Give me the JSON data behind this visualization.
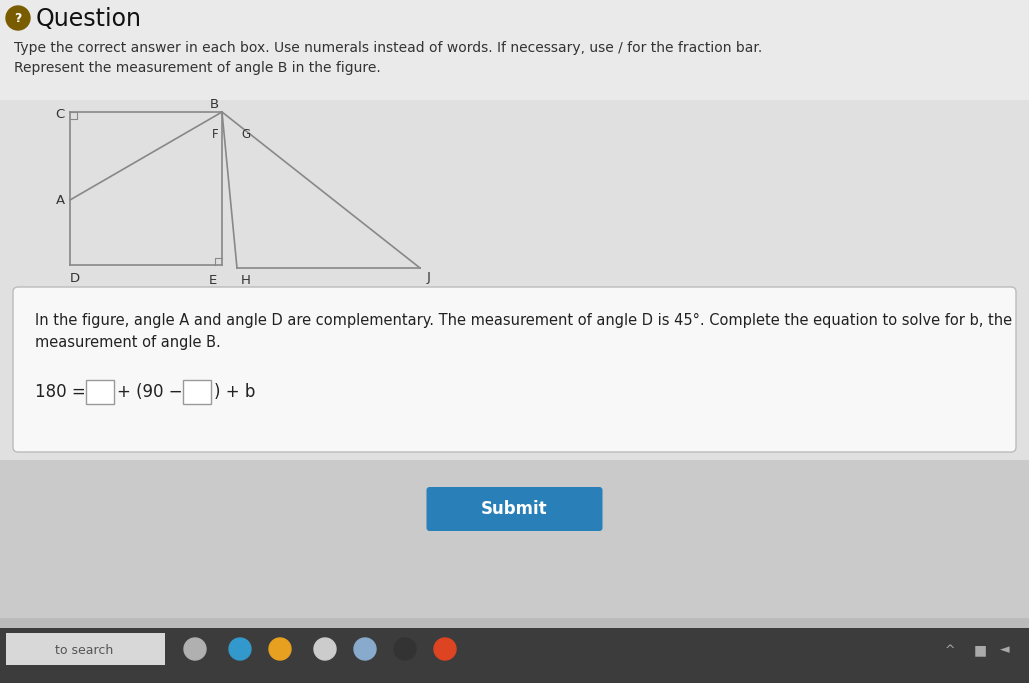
{
  "bg_color": "#dcdcdc",
  "header_bg": "#ececec",
  "content_bg": "#e4e4e4",
  "submit_area_bg": "#d0d0d0",
  "taskbar_bg": "#3a3a3a",
  "question_title": "Question",
  "instruction_line1": "Type the correct answer in each box. Use numerals instead of words. If necessary, use / for the fraction bar.",
  "instruction_line2": "Represent the measurement of angle B in the figure.",
  "info_text_line1": "In the figure, angle A and angle D are complementary. The measurement of angle D is 45°. Complete the equation to solve for b, the",
  "info_text_line2": "measurement of angle B.",
  "submit_btn_color": "#2980b9",
  "submit_btn_text": "Submit",
  "taskbar_search_text": "to search",
  "triangle_color": "#888888",
  "label_color": "#333333",
  "info_box_bg": "#f8f8f8",
  "info_box_border": "#bbbbbb",
  "icon_color": "#7a5c00"
}
